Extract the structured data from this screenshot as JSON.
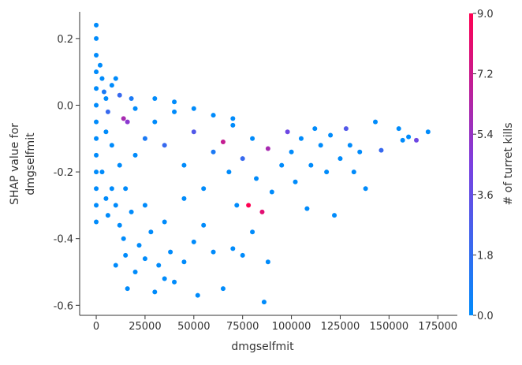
{
  "chart_data": {
    "type": "scatter",
    "xlabel": "dmgselfmit",
    "ylabel": [
      "SHAP value for",
      "dmgselfmit"
    ],
    "colorbar_label": "# of turret kills",
    "xlim": [
      -8500,
      185000
    ],
    "ylim": [
      -0.63,
      0.28
    ],
    "xticks": [
      0,
      25000,
      50000,
      75000,
      100000,
      125000,
      150000,
      175000
    ],
    "yticks": [
      0.2,
      {
        "value": 0,
        "label": "0.0"
      },
      -0.2,
      -0.4,
      -0.6
    ],
    "clim": [
      0,
      9
    ],
    "cticks": [
      {
        "value": 0,
        "label": "0.0"
      },
      1.8,
      3.6,
      5.4,
      7.2,
      {
        "value": 9,
        "label": "9.0"
      }
    ],
    "colormap": [
      "#008bfb",
      "#7b3fe0",
      "#ff0052"
    ],
    "series": [
      {
        "x": [
          0,
          0,
          0,
          0,
          0,
          0,
          0,
          0,
          0,
          0,
          0,
          0,
          0,
          2000,
          3000,
          4000,
          5000,
          6000,
          8000,
          10000,
          12000,
          14000,
          16000,
          18000,
          20000,
          3000,
          5000,
          6000,
          8000,
          10000,
          12000,
          14000,
          15000,
          16000,
          10000,
          20000,
          22000,
          25000,
          28000,
          30000,
          32000,
          35000,
          38000,
          40000,
          45000,
          50000,
          52000,
          55000,
          60000,
          65000,
          70000,
          75000,
          80000,
          86000,
          88000,
          20000,
          25000,
          30000,
          35000,
          40000,
          45000,
          50000,
          55000,
          60000,
          65000,
          68000,
          70000,
          72000,
          75000,
          78000,
          80000,
          82000,
          85000,
          88000,
          90000,
          95000,
          98000,
          100000,
          102000,
          105000,
          108000,
          110000,
          112000,
          115000,
          118000,
          120000,
          122000,
          125000,
          128000,
          130000,
          132000,
          135000,
          138000,
          143000,
          146000,
          155000,
          157000,
          160000,
          164000,
          170000,
          30000,
          40000,
          50000,
          60000,
          70000,
          25000,
          35000,
          45000,
          15000,
          18000,
          8000,
          12000,
          5000
        ],
        "values": [
          0.24,
          0.2,
          0.15,
          0.1,
          0.05,
          0,
          -0.05,
          -0.1,
          -0.15,
          -0.2,
          -0.25,
          -0.3,
          -0.35,
          0.12,
          0.08,
          0.04,
          0.02,
          -0.02,
          0.06,
          0.08,
          0.03,
          -0.04,
          -0.05,
          0.02,
          -0.01,
          -0.2,
          -0.28,
          -0.33,
          -0.25,
          -0.3,
          -0.36,
          -0.4,
          -0.45,
          -0.55,
          -0.48,
          -0.5,
          -0.42,
          -0.46,
          -0.38,
          -0.56,
          -0.48,
          -0.52,
          -0.44,
          -0.53,
          -0.47,
          -0.41,
          -0.57,
          -0.36,
          -0.44,
          -0.55,
          -0.43,
          -0.45,
          -0.38,
          -0.59,
          -0.47,
          -0.15,
          -0.1,
          -0.05,
          -0.12,
          -0.02,
          -0.18,
          -0.08,
          -0.25,
          -0.14,
          -0.11,
          -0.2,
          -0.06,
          -0.3,
          -0.16,
          -0.3,
          -0.1,
          -0.22,
          -0.32,
          -0.13,
          -0.26,
          -0.18,
          -0.08,
          -0.14,
          -0.23,
          -0.1,
          -0.31,
          -0.18,
          -0.07,
          -0.12,
          -0.2,
          -0.09,
          -0.33,
          -0.16,
          -0.07,
          -0.12,
          -0.2,
          -0.14,
          -0.25,
          -0.05,
          -0.135,
          -0.07,
          -0.105,
          -0.095,
          -0.105,
          -0.08,
          0.02,
          0.01,
          -0.01,
          -0.03,
          -0.04,
          -0.3,
          -0.35,
          -0.28,
          -0.25,
          -0.32,
          -0.12,
          -0.18,
          -0.08
        ],
        "c": [
          0,
          0,
          0,
          0,
          0,
          0,
          0,
          0,
          0,
          0,
          0,
          0,
          0,
          0,
          0,
          1,
          0,
          2,
          0,
          0,
          2,
          6,
          5,
          1,
          0,
          0,
          0,
          0,
          0,
          0,
          0,
          0,
          0,
          0,
          0,
          0,
          0,
          0,
          0,
          0,
          0,
          0,
          0,
          0,
          0,
          0,
          0,
          0,
          0,
          0,
          0,
          0,
          0,
          0,
          0,
          0,
          1,
          0,
          2,
          0,
          0,
          3,
          0,
          1,
          7,
          0,
          0,
          0,
          2,
          9,
          0,
          0,
          8,
          6,
          0,
          0,
          4,
          0,
          0,
          0,
          0,
          0,
          0,
          0,
          0,
          0,
          0,
          0,
          3,
          0,
          0,
          0,
          0,
          0,
          2,
          0,
          0,
          0,
          4,
          0,
          0,
          0,
          0,
          0,
          0,
          0,
          0,
          0,
          0,
          0,
          0,
          0,
          0
        ]
      }
    ]
  }
}
